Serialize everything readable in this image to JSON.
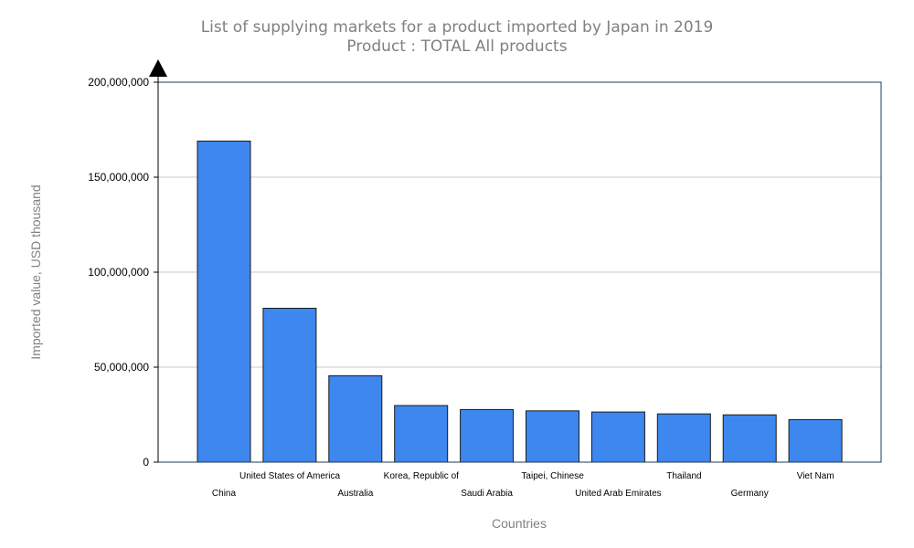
{
  "chart_data": {
    "type": "bar",
    "title": "List of supplying markets for a product imported by Japan in 2019",
    "subtitle": "Product : TOTAL All products",
    "xlabel": "Countries",
    "ylabel": "Imported value, USD thousand",
    "ylim": [
      0,
      200000000
    ],
    "yticks": [
      0,
      50000000,
      100000000,
      150000000,
      200000000
    ],
    "ytick_labels": [
      "0",
      "50,000,000",
      "100,000,000",
      "150,000,000",
      "200,000,000"
    ],
    "grid": true,
    "legend": "none",
    "bar_color": "#3d87ee",
    "categories": [
      "China",
      "United States of America",
      "Australia",
      "Korea, Republic of",
      "Saudi Arabia",
      "Taipei, Chinese",
      "United Arab Emirates",
      "Thailand",
      "Germany",
      "Viet Nam"
    ],
    "values": [
      169000000,
      81000000,
      45500000,
      29800000,
      27700000,
      27000000,
      26400000,
      25400000,
      24900000,
      22400000
    ]
  }
}
